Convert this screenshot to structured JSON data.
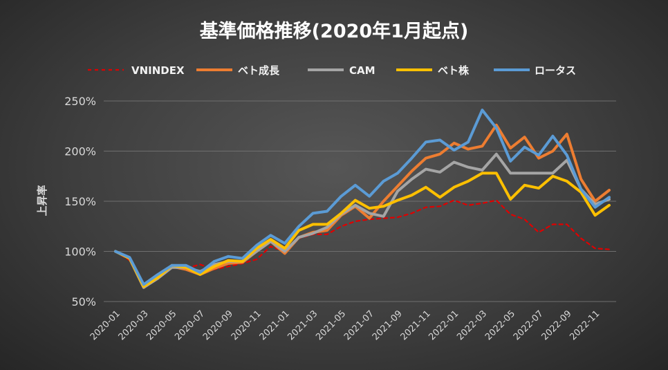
{
  "chart_data": {
    "type": "line",
    "title": "基準価格推移(2020年1月起点)",
    "ylabel": "上昇率",
    "xlabel": "",
    "ylim": [
      50,
      250
    ],
    "yticks": [
      "50%",
      "100%",
      "150%",
      "200%",
      "250%"
    ],
    "grid": true,
    "legend_position": "top",
    "x": [
      "2020-01",
      "2020-02",
      "2020-03",
      "2020-04",
      "2020-05",
      "2020-06",
      "2020-07",
      "2020-08",
      "2020-09",
      "2020-10",
      "2020-11",
      "2020-12",
      "2021-01",
      "2021-02",
      "2021-03",
      "2021-04",
      "2021-05",
      "2021-06",
      "2021-07",
      "2021-08",
      "2021-09",
      "2021-10",
      "2021-11",
      "2021-12",
      "2022-01",
      "2022-02",
      "2022-03",
      "2022-04",
      "2022-05",
      "2022-06",
      "2022-07",
      "2022-08",
      "2022-09",
      "2022-10",
      "2022-11",
      "2022-12"
    ],
    "x_tick_labels": [
      "2020-01",
      "2020-03",
      "2020-05",
      "2020-07",
      "2020-09",
      "2020-11",
      "2021-01",
      "2021-03",
      "2021-05",
      "2021-07",
      "2021-09",
      "2021-11",
      "2022-01",
      "2022-03",
      "2022-05",
      "2022-07",
      "2022-09",
      "2022-11"
    ],
    "series": [
      {
        "name": "VNINDEX",
        "color": "#e00000",
        "dashed": true,
        "values": [
          100,
          91,
          64,
          75,
          84,
          83,
          87,
          82,
          85,
          88,
          92,
          105,
          100,
          113,
          117,
          117,
          125,
          130,
          132,
          133,
          134,
          138,
          144,
          145,
          151,
          146,
          148,
          151,
          137,
          132,
          119,
          127,
          127,
          113,
          103,
          102
        ]
      },
      {
        "name": "ベト成長",
        "color": "#ed7d31",
        "dashed": false,
        "values": [
          100,
          93,
          64,
          74,
          85,
          82,
          77,
          83,
          88,
          89,
          100,
          110,
          98,
          114,
          119,
          121,
          136,
          145,
          133,
          150,
          165,
          180,
          193,
          197,
          208,
          202,
          205,
          226,
          203,
          214,
          193,
          200,
          217,
          172,
          150,
          161
        ]
      },
      {
        "name": "CAM",
        "color": "#a5a5a5",
        "dashed": false,
        "values": [
          100,
          93,
          64,
          73,
          84,
          84,
          80,
          87,
          90,
          90,
          100,
          110,
          100,
          114,
          118,
          124,
          137,
          146,
          138,
          135,
          160,
          172,
          182,
          179,
          189,
          184,
          181,
          197,
          178,
          178,
          178,
          178,
          191,
          162,
          147,
          152
        ]
      },
      {
        "name": "ベト株",
        "color": "#ffc000",
        "dashed": false,
        "values": [
          100,
          93,
          65,
          74,
          86,
          84,
          77,
          85,
          91,
          90,
          103,
          112,
          103,
          121,
          127,
          127,
          138,
          151,
          143,
          145,
          151,
          156,
          164,
          154,
          164,
          170,
          178,
          178,
          152,
          166,
          163,
          175,
          170,
          159,
          136,
          146
        ]
      },
      {
        "name": "ロータス",
        "color": "#5b9bd5",
        "dashed": false,
        "values": [
          100,
          94,
          67,
          77,
          86,
          86,
          79,
          90,
          95,
          93,
          106,
          116,
          108,
          125,
          138,
          140,
          155,
          166,
          155,
          170,
          178,
          193,
          209,
          211,
          201,
          209,
          241,
          223,
          190,
          204,
          196,
          215,
          196,
          162,
          144,
          154
        ]
      }
    ]
  }
}
